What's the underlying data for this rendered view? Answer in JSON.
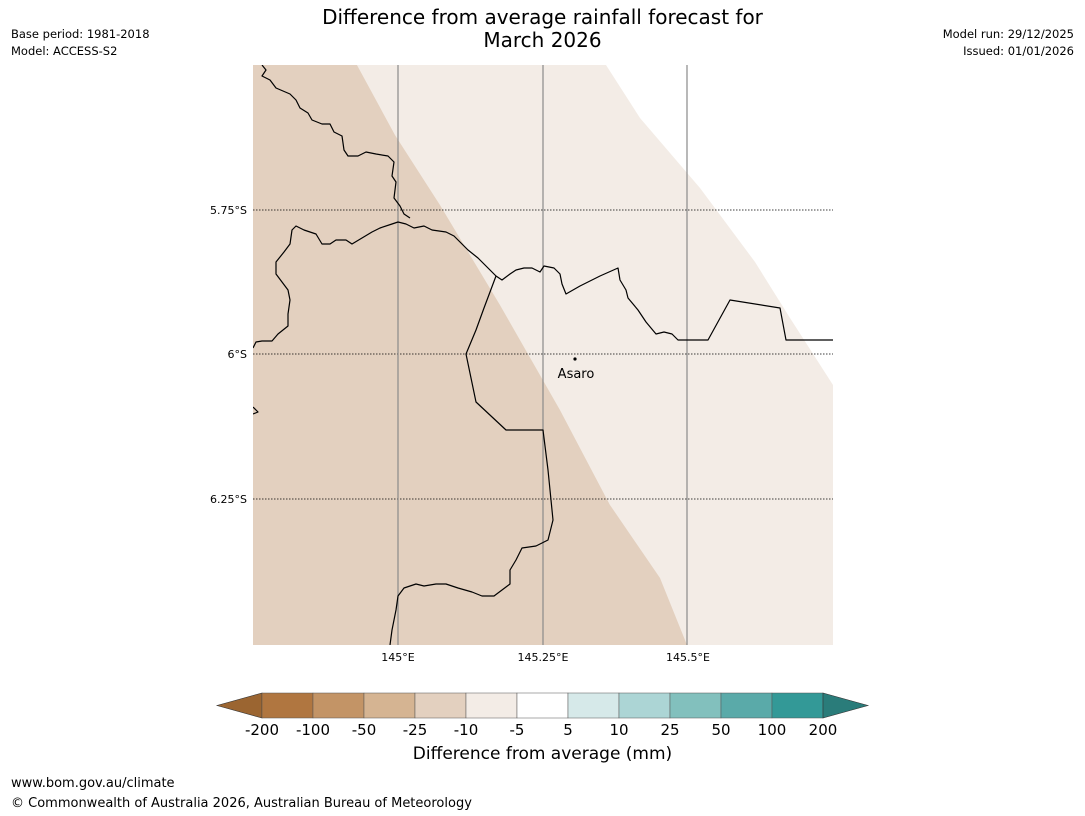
{
  "title_line1": "Difference from average rainfall forecast for",
  "title_line2": "March 2026",
  "base_period": "Base period: 1981-2018",
  "model": "Model: ACCESS-S2",
  "model_run": "Model run: 29/12/2025",
  "issued": "Issued: 01/01/2026",
  "map": {
    "lat_labels": [
      "5.75°S",
      "6°S",
      "6.25°S"
    ],
    "lon_labels": [
      "145°E",
      "145.25°E",
      "145.5°E"
    ],
    "place_label": "Asaro",
    "colors": {
      "dry_-25_-10": "#e3d0bf",
      "dry_-10_-5": "#f3ece6",
      "border": "#000000",
      "meridian": "#8a8a8a"
    }
  },
  "colorbar": {
    "title": "Difference from average (mm)",
    "ticks": [
      "-200",
      "-100",
      "-50",
      "-25",
      "-10",
      "-5",
      "5",
      "10",
      "25",
      "50",
      "100",
      "200"
    ],
    "colors": [
      "#9b6531",
      "#b07640",
      "#c39466",
      "#d5b492",
      "#e3d0bf",
      "#f3ece6",
      "#ffffff",
      "#d6e9e9",
      "#acd5d5",
      "#82c0bd",
      "#5aaaa9",
      "#339997",
      "#2a7c7a"
    ]
  },
  "footer": {
    "url": "www.bom.gov.au/climate",
    "copyright": "© Commonwealth of Australia 2026, Australian Bureau of Meteorology"
  }
}
